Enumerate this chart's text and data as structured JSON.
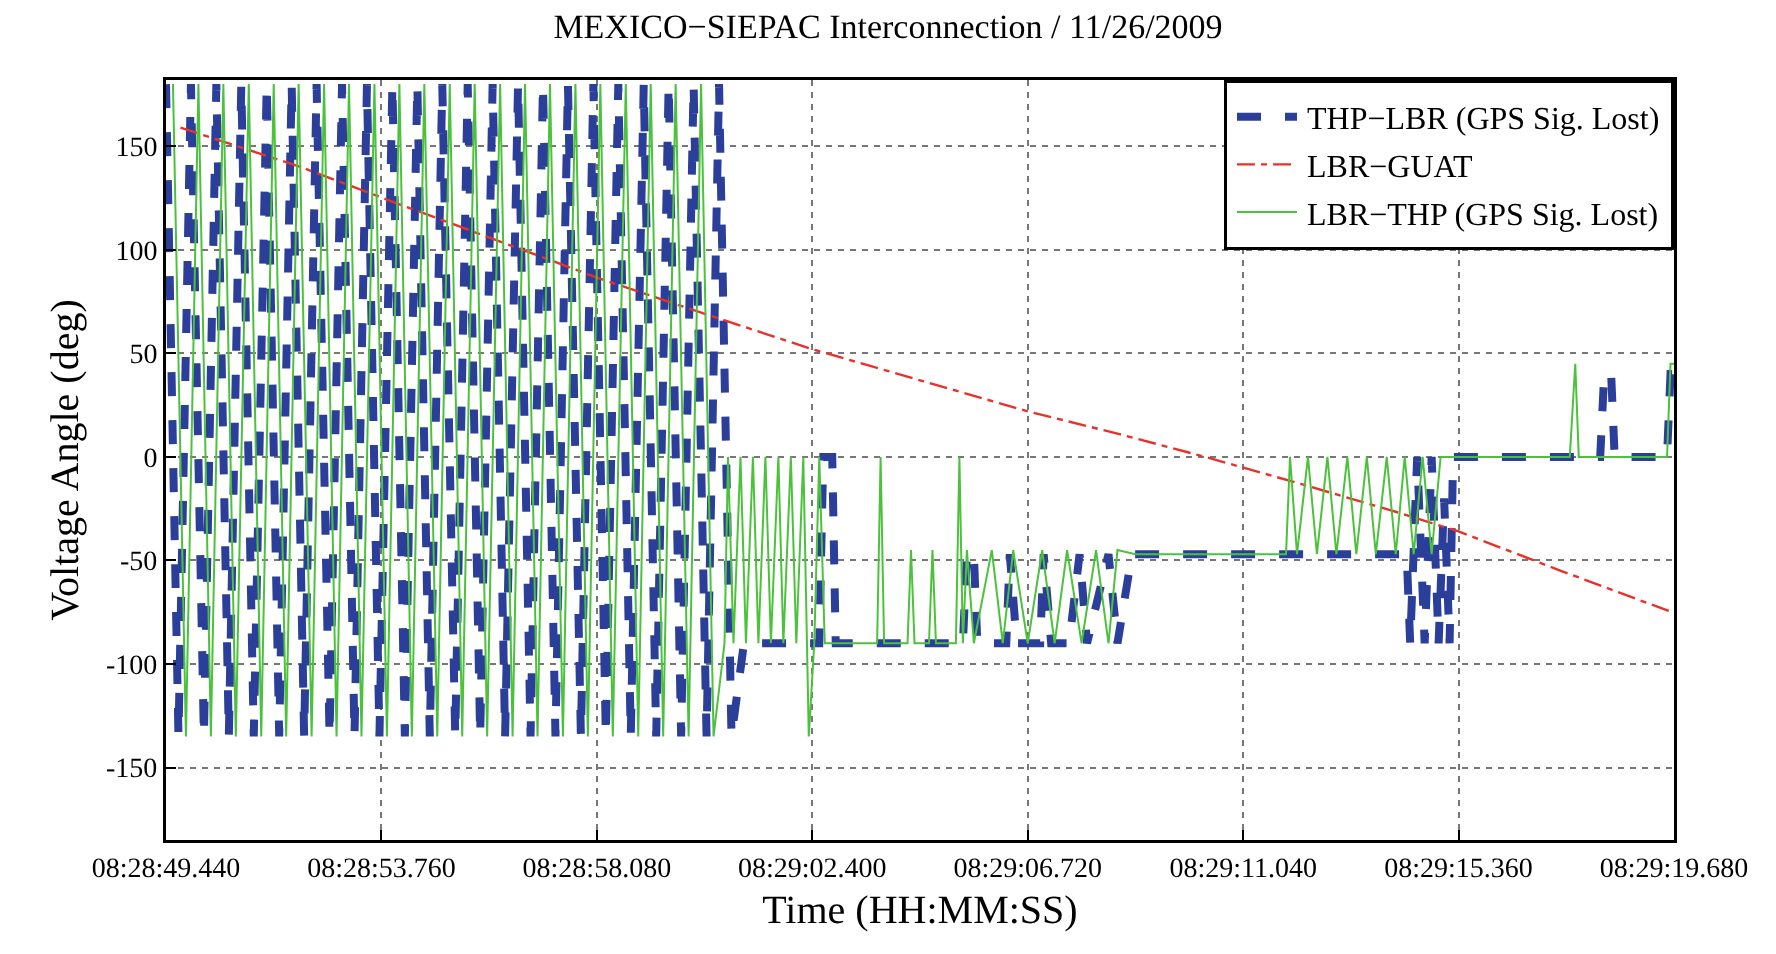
{
  "chart_data": {
    "type": "line",
    "title": "MEXICO−SIEPAC Interconnection / 11/26/2009",
    "xlabel": "Time (HH:MM:SS)",
    "ylabel": "Voltage Angle (deg)",
    "xlim": [
      "2009-11-26T08:28:49.44",
      "2009-11-26T08:29:19.68"
    ],
    "xticks": [
      {
        "value": "2009-11-26T08:28:49.44",
        "label": "08:28:49.440"
      },
      {
        "value": "2009-11-26T08:28:53.76",
        "label": "08:28:53.760"
      },
      {
        "value": "2009-11-26T08:28:58.08",
        "label": "08:28:58.080"
      },
      {
        "value": "2009-11-26T08:29:02.40",
        "label": "08:29:02.400"
      },
      {
        "value": "2009-11-26T08:29:06.72",
        "label": "08:29:06.720"
      },
      {
        "value": "2009-11-26T08:29:11.04",
        "label": "08:29:11.040"
      },
      {
        "value": "2009-11-26T08:29:15.36",
        "label": "08:29:15.360"
      },
      {
        "value": "2009-11-26T08:29:19.68",
        "label": "08:29:19.680"
      }
    ],
    "ylim": [
      -185,
      182
    ],
    "yticks": [
      -150,
      -100,
      -50,
      0,
      50,
      100,
      150
    ],
    "grid": true,
    "legend": "top right",
    "series": [
      {
        "name": "THP−LBR (GPS Sig. Lost)",
        "color": "#2b3f9a",
        "line_style": "dashed",
        "x": [
          "2009-11-26T08:28:49.44",
          "2009-11-26T08:28:49.69",
          "2009-11-26T08:28:49.94",
          "2009-11-26T08:28:50.20",
          "2009-11-26T08:28:50.45",
          "2009-11-26T08:28:50.70",
          "2009-11-26T08:28:50.95",
          "2009-11-26T08:28:51.20",
          "2009-11-26T08:28:51.46",
          "2009-11-26T08:28:51.71",
          "2009-11-26T08:28:51.96",
          "2009-11-26T08:28:52.21",
          "2009-11-26T08:28:52.46",
          "2009-11-26T08:28:52.72",
          "2009-11-26T08:28:52.97",
          "2009-11-26T08:28:53.22",
          "2009-11-26T08:28:53.47",
          "2009-11-26T08:28:53.72",
          "2009-11-26T08:28:53.98",
          "2009-11-26T08:28:54.23",
          "2009-11-26T08:28:54.48",
          "2009-11-26T08:28:54.73",
          "2009-11-26T08:28:54.98",
          "2009-11-26T08:28:55.24",
          "2009-11-26T08:28:55.49",
          "2009-11-26T08:28:55.74",
          "2009-11-26T08:28:55.99",
          "2009-11-26T08:28:56.24",
          "2009-11-26T08:28:56.50",
          "2009-11-26T08:28:56.75",
          "2009-11-26T08:28:57.00",
          "2009-11-26T08:28:57.25",
          "2009-11-26T08:28:57.50",
          "2009-11-26T08:28:57.76",
          "2009-11-26T08:28:58.01",
          "2009-11-26T08:28:58.26",
          "2009-11-26T08:28:58.51",
          "2009-11-26T08:28:58.76",
          "2009-11-26T08:28:59.02",
          "2009-11-26T08:28:59.27",
          "2009-11-26T08:28:59.52",
          "2009-11-26T08:28:59.77",
          "2009-11-26T08:29:00.02",
          "2009-11-26T08:29:00.28",
          "2009-11-26T08:29:00.53",
          "2009-11-26T08:29:00.78",
          "2009-11-26T08:29:01.03",
          "2009-11-26T08:29:02.54",
          "2009-11-26T08:29:02.62",
          "2009-11-26T08:29:02.80",
          "2009-11-26T08:29:02.87",
          "2009-11-26T08:29:05.42",
          "2009-11-26T08:29:05.50",
          "2009-11-26T08:29:05.64",
          "2009-11-26T08:29:05.71",
          "2009-11-26T08:29:06.29",
          "2009-11-26T08:29:06.36",
          "2009-11-26T08:29:06.50",
          "2009-11-26T08:29:06.97",
          "2009-11-26T08:29:07.04",
          "2009-11-26T08:29:07.19",
          "2009-11-26T08:29:07.55",
          "2009-11-26T08:29:07.76",
          "2009-11-26T08:29:07.91",
          "2009-11-26T08:29:08.34",
          "2009-11-26T08:29:08.52",
          "2009-11-26T08:29:08.81",
          "2009-11-26T08:29:14.32",
          "2009-11-26T08:29:14.39",
          "2009-11-26T08:29:14.53",
          "2009-11-26T08:29:14.68",
          "2009-11-26T08:29:14.82",
          "2009-11-26T08:29:14.96",
          "2009-11-26T08:29:15.07",
          "2009-11-26T08:29:15.18",
          "2009-11-26T08:29:15.25",
          "2009-11-26T08:29:18.20",
          "2009-11-26T08:29:18.28",
          "2009-11-26T08:29:18.42",
          "2009-11-26T08:29:18.49",
          "2009-11-26T08:29:19.54",
          "2009-11-26T08:29:19.61",
          "2009-11-26T08:29:19.68"
        ],
        "values": [
          180,
          -135,
          180,
          -135,
          180,
          -135,
          180,
          -135,
          180,
          -135,
          180,
          -135,
          180,
          -135,
          180,
          -135,
          180,
          -135,
          180,
          -135,
          180,
          -135,
          180,
          -135,
          180,
          -135,
          180,
          -135,
          180,
          -135,
          180,
          -135,
          180,
          -135,
          180,
          -135,
          180,
          -135,
          180,
          -135,
          180,
          -135,
          180,
          -135,
          180,
          -135,
          -90,
          -90,
          0,
          0,
          -90,
          -90,
          -47,
          -47,
          -90,
          -90,
          -47,
          -90,
          -90,
          -47,
          -90,
          -90,
          -47,
          -90,
          -47,
          -90,
          -47,
          -47,
          -90,
          0,
          -90,
          0,
          -90,
          -20,
          -90,
          0,
          0,
          40,
          40,
          0,
          0,
          40,
          40
        ]
      },
      {
        "name": "LBR−GUAT",
        "color": "#e8312a",
        "line_style": "dashdot",
        "x": [
          "2009-11-26T08:28:49.73",
          "2009-11-26T08:28:52.14",
          "2009-11-26T08:28:54.12",
          "2009-11-26T08:28:56.14",
          "2009-11-26T08:28:58.15",
          "2009-11-26T08:29:00.13",
          "2009-11-26T08:29:02.40",
          "2009-11-26T08:29:04.56",
          "2009-11-26T08:29:06.72",
          "2009-11-26T08:29:08.56",
          "2009-11-26T08:29:10.28",
          "2009-11-26T08:29:12.19",
          "2009-11-26T08:29:14.17",
          "2009-11-26T08:29:15.36",
          "2009-11-26T08:29:17.41",
          "2009-11-26T08:29:19.64"
        ],
        "values": [
          159,
          140,
          122,
          104,
          86,
          70,
          52,
          37,
          22,
          11,
          0,
          -13,
          -27,
          -36,
          -55,
          -75
        ]
      },
      {
        "name": "LBR−THP (GPS Sig. Lost)",
        "color": "#4cc23c",
        "line_style": "solid",
        "x": [
          "2009-11-26T08:28:49.58",
          "2009-11-26T08:28:49.84",
          "2009-11-26T08:28:50.09",
          "2009-11-26T08:28:50.34",
          "2009-11-26T08:28:50.59",
          "2009-11-26T08:28:50.84",
          "2009-11-26T08:28:51.10",
          "2009-11-26T08:28:51.35",
          "2009-11-26T08:28:51.60",
          "2009-11-26T08:28:51.85",
          "2009-11-26T08:28:52.10",
          "2009-11-26T08:28:52.36",
          "2009-11-26T08:28:52.61",
          "2009-11-26T08:28:52.86",
          "2009-11-26T08:28:53.11",
          "2009-11-26T08:28:53.36",
          "2009-11-26T08:28:53.62",
          "2009-11-26T08:28:53.87",
          "2009-11-26T08:28:54.12",
          "2009-11-26T08:28:54.37",
          "2009-11-26T08:28:54.62",
          "2009-11-26T08:28:54.88",
          "2009-11-26T08:28:55.13",
          "2009-11-26T08:28:55.38",
          "2009-11-26T08:28:55.63",
          "2009-11-26T08:28:55.88",
          "2009-11-26T08:28:56.14",
          "2009-11-26T08:28:56.39",
          "2009-11-26T08:28:56.64",
          "2009-11-26T08:28:56.89",
          "2009-11-26T08:28:57.14",
          "2009-11-26T08:28:57.40",
          "2009-11-26T08:28:57.65",
          "2009-11-26T08:28:57.90",
          "2009-11-26T08:28:58.15",
          "2009-11-26T08:28:58.40",
          "2009-11-26T08:28:58.66",
          "2009-11-26T08:28:58.91",
          "2009-11-26T08:28:59.16",
          "2009-11-26T08:28:59.41",
          "2009-11-26T08:28:59.66",
          "2009-11-26T08:28:59.92",
          "2009-11-26T08:29:00.17",
          "2009-11-26T08:29:00.42",
          "2009-11-26T08:29:00.64",
          "2009-11-26T08:29:00.71",
          "2009-11-26T08:29:00.82",
          "2009-11-26T08:29:00.96",
          "2009-11-26T08:29:01.07",
          "2009-11-26T08:29:01.21",
          "2009-11-26T08:29:01.32",
          "2009-11-26T08:29:01.46",
          "2009-11-26T08:29:01.57",
          "2009-11-26T08:29:01.72",
          "2009-11-26T08:29:01.82",
          "2009-11-26T08:29:01.97",
          "2009-11-26T08:29:02.08",
          "2009-11-26T08:29:02.22",
          "2009-11-26T08:29:02.33",
          "2009-11-26T08:29:02.44",
          "2009-11-26T08:29:02.54",
          "2009-11-26T08:29:02.65",
          "2009-11-26T08:29:03.70",
          "2009-11-26T08:29:03.77",
          "2009-11-26T08:29:03.84",
          "2009-11-26T08:29:04.31",
          "2009-11-26T08:29:04.38",
          "2009-11-26T08:29:04.45",
          "2009-11-26T08:29:04.74",
          "2009-11-26T08:29:04.81",
          "2009-11-26T08:29:04.88",
          "2009-11-26T08:29:05.28",
          "2009-11-26T08:29:05.35",
          "2009-11-26T08:29:05.42",
          "2009-11-26T08:29:05.50",
          "2009-11-26T08:29:05.64",
          "2009-11-26T08:29:06.00",
          "2009-11-26T08:29:06.22",
          "2009-11-26T08:29:06.43",
          "2009-11-26T08:29:06.72",
          "2009-11-26T08:29:07.01",
          "2009-11-26T08:29:07.26",
          "2009-11-26T08:29:07.51",
          "2009-11-26T08:29:07.80",
          "2009-11-26T08:29:08.09",
          "2009-11-26T08:29:08.34",
          "2009-11-26T08:29:08.52",
          "2009-11-26T08:29:08.88",
          "2009-11-26T08:29:11.90",
          "2009-11-26T08:29:11.98",
          "2009-11-26T08:29:12.12",
          "2009-11-26T08:29:12.34",
          "2009-11-26T08:29:12.52",
          "2009-11-26T08:29:12.73",
          "2009-11-26T08:29:12.91",
          "2009-11-26T08:29:13.13",
          "2009-11-26T08:29:13.31",
          "2009-11-26T08:29:13.52",
          "2009-11-26T08:29:13.70",
          "2009-11-26T08:29:13.92",
          "2009-11-26T08:29:14.10",
          "2009-11-26T08:29:14.28",
          "2009-11-26T08:29:14.46",
          "2009-11-26T08:29:14.64",
          "2009-11-26T08:29:14.82",
          "2009-11-26T08:29:15.00",
          "2009-11-26T08:29:15.25",
          "2009-11-26T08:29:17.59",
          "2009-11-26T08:29:17.70",
          "2009-11-26T08:29:17.77",
          "2009-11-26T08:29:19.54",
          "2009-11-26T08:29:19.61",
          "2009-11-26T08:29:19.68"
        ],
        "values": [
          180,
          -135,
          180,
          -135,
          180,
          -135,
          180,
          -135,
          180,
          -135,
          180,
          -135,
          180,
          -135,
          180,
          -135,
          180,
          -135,
          180,
          -135,
          180,
          -135,
          180,
          -135,
          180,
          -135,
          180,
          -135,
          180,
          -135,
          180,
          -135,
          180,
          -135,
          180,
          -135,
          180,
          -135,
          180,
          -135,
          180,
          -135,
          180,
          -135,
          -90,
          0,
          -90,
          0,
          -90,
          0,
          -90,
          0,
          -90,
          0,
          -90,
          0,
          -90,
          0,
          -135,
          -90,
          0,
          -90,
          -90,
          0,
          -90,
          -90,
          -45,
          -90,
          -90,
          -45,
          -90,
          -90,
          0,
          -90,
          -45,
          -90,
          -45,
          -90,
          -45,
          -90,
          -45,
          -90,
          -45,
          -90,
          -45,
          -90,
          -45,
          -47,
          -47,
          0,
          -47,
          0,
          -47,
          0,
          -47,
          0,
          -47,
          0,
          -47,
          0,
          -47,
          0,
          -47,
          0,
          -47,
          0,
          0,
          0,
          45,
          0,
          0,
          45,
          45
        ]
      }
    ]
  }
}
